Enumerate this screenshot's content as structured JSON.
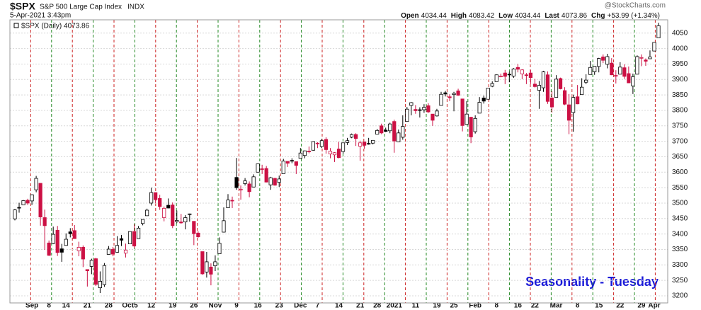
{
  "chart_data": {
    "type": "candlestick",
    "symbol": "$SPX",
    "name": "S&P 500 Large Cap Index",
    "exchange": "INDX",
    "timestamp": "5-Apr-2021 3:43pm",
    "quote": [
      {
        "label": "Open",
        "value": "4034.44"
      },
      {
        "label": "High",
        "value": "4083.42"
      },
      {
        "label": "Low",
        "value": "4034.44"
      },
      {
        "label": "Last",
        "value": "4073.86"
      },
      {
        "label": "Chg",
        "value": "+53.99 (+1.34%)"
      }
    ],
    "watermark": "@StockCharts.com",
    "legend": "$SPX (Daily) 4073.86",
    "annotation": "Seasonality - Tuesday",
    "up_color": "#000000",
    "down_color": "#cc1144",
    "grid": true,
    "ylim": [
      3177,
      4093
    ],
    "yticks": [
      3200,
      3250,
      3300,
      3350,
      3400,
      3450,
      3500,
      3550,
      3600,
      3650,
      3700,
      3750,
      3800,
      3850,
      3900,
      3950,
      4000,
      4050
    ],
    "categories": [
      null,
      null,
      null,
      null,
      "Sep",
      null,
      null,
      null,
      "8",
      null,
      null,
      null,
      "14",
      null,
      null,
      null,
      null,
      "21",
      null,
      null,
      null,
      null,
      "28",
      null,
      null,
      null,
      null,
      "Oct5",
      null,
      null,
      null,
      null,
      "12",
      null,
      null,
      null,
      null,
      "19",
      null,
      null,
      null,
      null,
      "26",
      null,
      null,
      null,
      null,
      "Nov",
      null,
      null,
      null,
      null,
      "9",
      null,
      null,
      null,
      null,
      "16",
      null,
      null,
      null,
      null,
      "23",
      null,
      null,
      null,
      null,
      "Dec",
      null,
      null,
      null,
      "7",
      null,
      null,
      null,
      null,
      "14",
      null,
      null,
      null,
      null,
      "21",
      null,
      null,
      null,
      "28",
      null,
      null,
      null,
      "2021",
      null,
      null,
      null,
      null,
      "11",
      null,
      null,
      null,
      null,
      "19",
      null,
      null,
      null,
      "25",
      null,
      null,
      null,
      null,
      "Feb",
      null,
      null,
      null,
      null,
      "8",
      null,
      null,
      null,
      null,
      "16",
      null,
      null,
      null,
      "22",
      null,
      null,
      null,
      null,
      "Mar",
      null,
      null,
      null,
      null,
      "8",
      null,
      null,
      null,
      null,
      "15",
      null,
      null,
      null,
      null,
      "22",
      null,
      null,
      null,
      null,
      "29",
      null,
      null,
      "Apr",
      null
    ],
    "open": [
      3449,
      3486,
      3494,
      3509,
      3507,
      3543,
      3564,
      3453,
      3371,
      3369,
      3412,
      3352,
      3363,
      3407,
      3411,
      3346,
      3357,
      3285,
      3295,
      3320,
      3226,
      3236,
      3334,
      3350,
      3341,
      3385,
      3338,
      3368,
      3408,
      3385,
      3434,
      3459,
      3500,
      3534,
      3515,
      3453,
      3493,
      3494,
      3440,
      3439,
      3439,
      3464,
      3441,
      3403,
      3343,
      3277,
      3293,
      3297,
      3336,
      3406,
      3485,
      3509,
      3583,
      3544,
      3563,
      3562,
      3552,
      3600,
      3611,
      3612,
      3559,
      3580,
      3567,
      3595,
      3635,
      3638,
      3634,
      3645,
      3654,
      3668,
      3671,
      3694,
      3683,
      3706,
      3659,
      3656,
      3675,
      3667,
      3696,
      3713,
      3722,
      3684,
      3698,
      3693,
      3694,
      3723,
      3750,
      3736,
      3734,
      3764,
      3698,
      3713,
      3764,
      3816,
      3803,
      3802,
      3802,
      3815,
      3788,
      3782,
      3816,
      3857,
      3844,
      3851,
      3863,
      3837,
      3755,
      3778,
      3731,
      3791,
      3840,
      3836,
      3878,
      3893,
      3910,
      3921,
      3917,
      3911,
      3939,
      3918,
      3915,
      3921,
      3885,
      3865,
      3873,
      3915,
      3840,
      3842,
      3903,
      3864,
      3818,
      3793,
      3844,
      3851,
      3891,
      3916,
      3925,
      3942,
      3973,
      3949,
      3953,
      3913,
      3917,
      3938,
      3919,
      3879,
      3917,
      3969,
      3963,
      3967,
      3992,
      4034.44
    ],
    "high": [
      3481,
      3501,
      3510,
      3514,
      3528,
      3588,
      3564,
      3479,
      3379,
      3424,
      3426,
      3368,
      3402,
      3419,
      3429,
      3375,
      3363,
      3285,
      3320,
      3323,
      3279,
      3306,
      3361,
      3358,
      3393,
      3397,
      3369,
      3409,
      3432,
      3426,
      3447,
      3482,
      3550,
      3534,
      3527,
      3489,
      3515,
      3502,
      3476,
      3465,
      3461,
      3466,
      3441,
      3409,
      3343,
      3342,
      3305,
      3331,
      3389,
      3486,
      3529,
      3521,
      3646,
      3557,
      3581,
      3570,
      3593,
      3628,
      3624,
      3620,
      3585,
      3582,
      3589,
      3643,
      3635,
      3645,
      3634,
      3678,
      3670,
      3683,
      3699,
      3697,
      3708,
      3713,
      3678,
      3665,
      3698,
      3695,
      3711,
      3725,
      3726,
      3702,
      3698,
      3711,
      3703,
      3740,
      3757,
      3744,
      3760,
      3770,
      3738,
      3784,
      3811,
      3827,
      3817,
      3810,
      3820,
      3823,
      3788,
      3805,
      3860,
      3863,
      3852,
      3860,
      3870,
      3837,
      3830,
      3778,
      3784,
      3843,
      3848,
      3872,
      3894,
      3916,
      3919,
      3931,
      3925,
      3937,
      3950,
      3933,
      3921,
      3931,
      3902,
      3895,
      3928,
      3926,
      3862,
      3914,
      3906,
      3875,
      3853,
      3851,
      3882,
      3904,
      3917,
      3960,
      3944,
      3970,
      3981,
      3983,
      3969,
      3930,
      3956,
      3949,
      3942,
      3919,
      3978,
      3981,
      3968,
      3994,
      4020,
      4083.42
    ],
    "low": [
      3444,
      3469,
      3493,
      3494,
      3494,
      3535,
      3427,
      3349,
      3329,
      3367,
      3329,
      3310,
      3363,
      3389,
      3385,
      3328,
      3293,
      3230,
      3270,
      3232,
      3209,
      3229,
      3334,
      3328,
      3340,
      3361,
      3324,
      3368,
      3354,
      3385,
      3428,
      3459,
      3492,
      3500,
      3478,
      3441,
      3483,
      3419,
      3435,
      3433,
      3415,
      3440,
      3364,
      3388,
      3268,
      3259,
      3234,
      3280,
      3336,
      3405,
      3485,
      3484,
      3543,
      3511,
      3557,
      3519,
      3552,
      3600,
      3594,
      3567,
      3543,
      3556,
      3552,
      3595,
      3617,
      3629,
      3594,
      3645,
      3645,
      3661,
      3670,
      3678,
      3678,
      3660,
      3645,
      3633,
      3645,
      3660,
      3688,
      3710,
      3685,
      3637,
      3676,
      3689,
      3690,
      3723,
      3723,
      3730,
      3726,
      3663,
      3697,
      3705,
      3764,
      3784,
      3789,
      3777,
      3792,
      3792,
      3750,
      3780,
      3816,
      3845,
      3830,
      3797,
      3847,
      3732,
      3755,
      3694,
      3725,
      3791,
      3822,
      3836,
      3875,
      3893,
      3907,
      3885,
      3891,
      3905,
      3923,
      3901,
      3885,
      3885,
      3874,
      3805,
      3860,
      3821,
      3793,
      3842,
      3868,
      3817,
      3723,
      3731,
      3820,
      3851,
      3885,
      3916,
      3915,
      3923,
      3953,
      3936,
      3914,
      3887,
      3917,
      3902,
      3889,
      3853,
      3917,
      3943,
      3944,
      3966,
      3992,
      4034.44
    ],
    "close": [
      3478,
      3484,
      3508,
      3500,
      3527,
      3580,
      3455,
      3427,
      3331,
      3399,
      3340,
      3341,
      3383,
      3401,
      3385,
      3357,
      3319,
      3281,
      3315,
      3237,
      3247,
      3298,
      3351,
      3335,
      3363,
      3380,
      3348,
      3408,
      3361,
      3419,
      3447,
      3477,
      3534,
      3511,
      3489,
      3483,
      3484,
      3427,
      3444,
      3436,
      3453,
      3465,
      3401,
      3391,
      3271,
      3310,
      3270,
      3310,
      3370,
      3443,
      3510,
      3509,
      3550,
      3545,
      3572,
      3537,
      3585,
      3627,
      3610,
      3568,
      3582,
      3558,
      3578,
      3636,
      3629,
      3638,
      3622,
      3662,
      3669,
      3667,
      3699,
      3692,
      3702,
      3673,
      3668,
      3663,
      3647,
      3695,
      3702,
      3722,
      3709,
      3695,
      3687,
      3691,
      3703,
      3735,
      3727,
      3732,
      3756,
      3701,
      3727,
      3748,
      3804,
      3825,
      3799,
      3802,
      3810,
      3795,
      3768,
      3798,
      3852,
      3853,
      3841,
      3855,
      3849,
      3751,
      3788,
      3714,
      3774,
      3826,
      3830,
      3872,
      3887,
      3915,
      3911,
      3910,
      3916,
      3934,
      3933,
      3931,
      3914,
      3906,
      3877,
      3881,
      3925,
      3829,
      3811,
      3901,
      3870,
      3820,
      3768,
      3842,
      3821,
      3875,
      3898,
      3939,
      3943,
      3968,
      3962,
      3974,
      3915,
      3913,
      3940,
      3910,
      3889,
      3909,
      3974,
      3971,
      3959,
      3973,
      4020,
      4073.86
    ]
  }
}
